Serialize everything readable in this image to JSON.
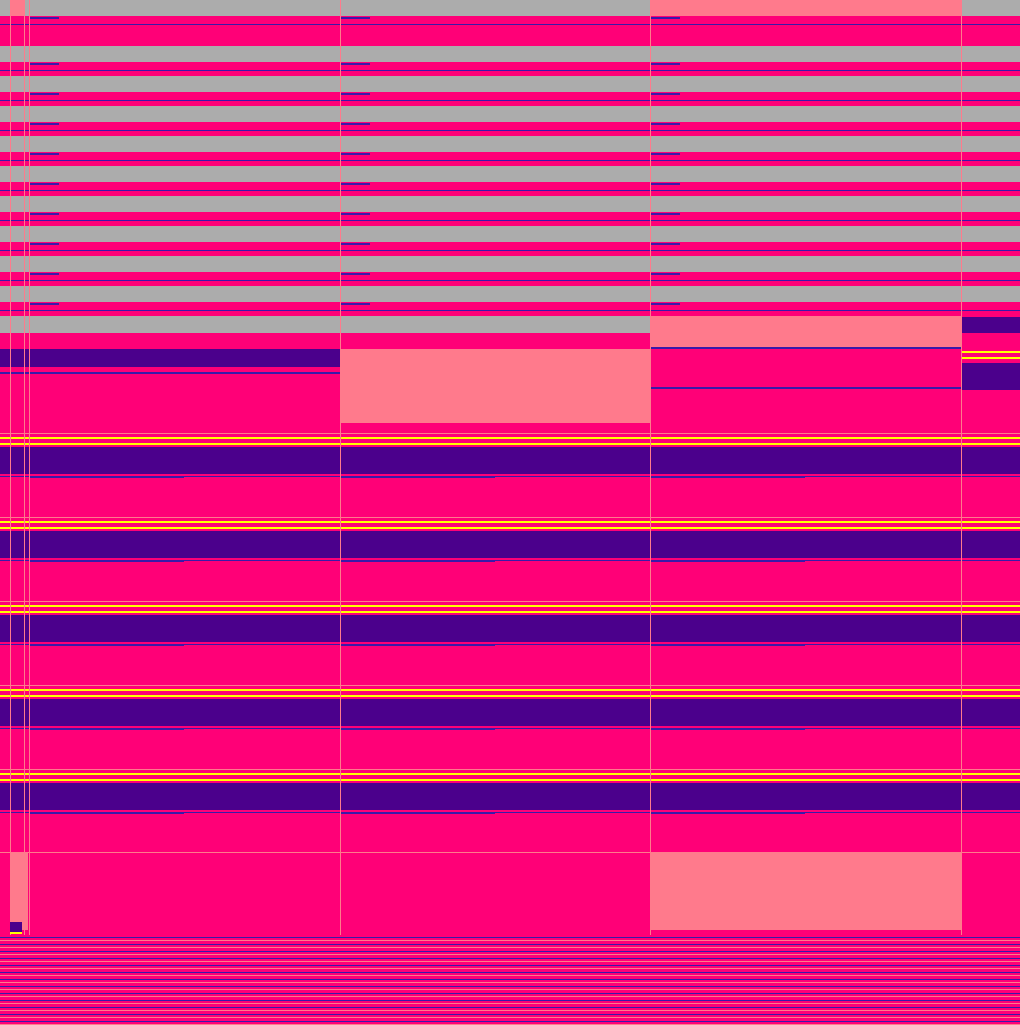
{
  "palette": {
    "magenta": "#ff0077",
    "gray": "#acacac",
    "salmon": "#ff7a8c",
    "purple": "#4b008c",
    "yellow": "#ffff00",
    "line_blue": "#3a1aa8"
  }
}
